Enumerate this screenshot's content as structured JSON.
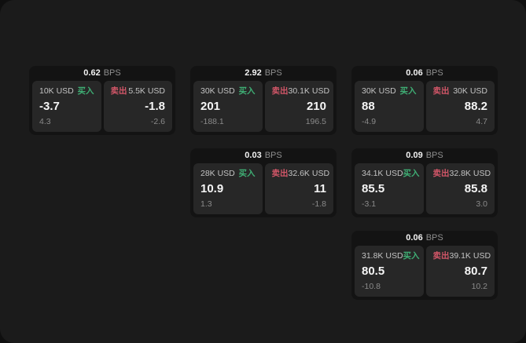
{
  "colors": {
    "outer_bg": "#0f0f0f",
    "surface_bg": "#1b1b1b",
    "card_bg": "#131313",
    "panel_bg": "#272727",
    "buy_green": "#3fae74",
    "sell_red": "#d25668",
    "text_primary": "#f5f5f5",
    "text_secondary": "#c3c3c3",
    "text_muted": "#8a8a8a"
  },
  "labels": {
    "bps": "BPS",
    "buy": "买入",
    "sell": "卖出"
  },
  "cards": [
    {
      "bps": "0.62",
      "buy": {
        "amount": "10K USD",
        "value": "-3.7",
        "delta": "4.3"
      },
      "sell": {
        "amount": "5.5K USD",
        "value": "-1.8",
        "delta": "-2.6"
      }
    },
    {
      "bps": "2.92",
      "buy": {
        "amount": "30K USD",
        "value": "201",
        "delta": "-188.1"
      },
      "sell": {
        "amount": "30.1K USD",
        "value": "210",
        "delta": "196.5"
      }
    },
    {
      "bps": "0.06",
      "buy": {
        "amount": "30K USD",
        "value": "88",
        "delta": "-4.9"
      },
      "sell": {
        "amount": "30K USD",
        "value": "88.2",
        "delta": "4.7"
      }
    },
    {
      "bps": "0.03",
      "buy": {
        "amount": "28K USD",
        "value": "10.9",
        "delta": "1.3"
      },
      "sell": {
        "amount": "32.6K USD",
        "value": "11",
        "delta": "-1.8"
      }
    },
    {
      "bps": "0.09",
      "buy": {
        "amount": "34.1K USD",
        "value": "85.5",
        "delta": "-3.1"
      },
      "sell": {
        "amount": "32.8K USD",
        "value": "85.8",
        "delta": "3.0"
      }
    },
    {
      "bps": "0.06",
      "buy": {
        "amount": "31.8K USD",
        "value": "80.5",
        "delta": "-10.8"
      },
      "sell": {
        "amount": "39.1K USD",
        "value": "80.7",
        "delta": "10.2"
      }
    }
  ]
}
